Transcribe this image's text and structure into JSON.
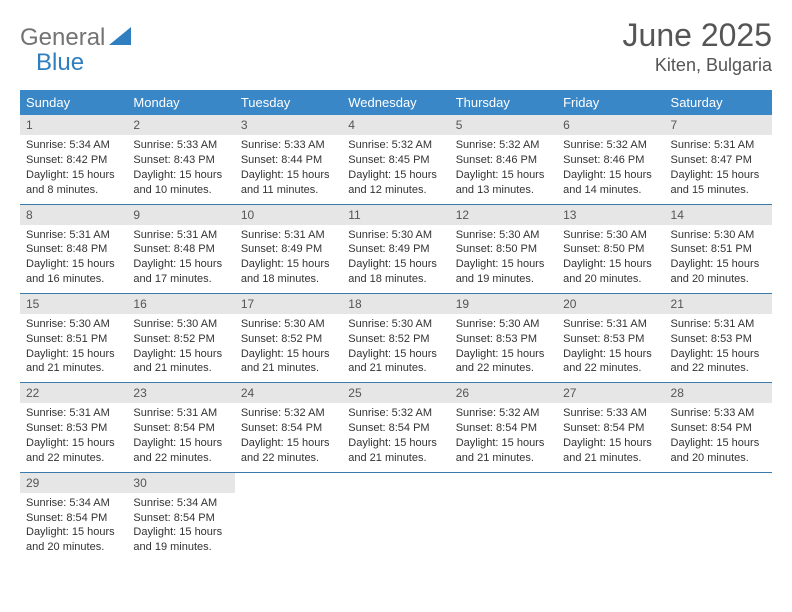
{
  "brand": {
    "part1": "General",
    "part2": "Blue"
  },
  "title": {
    "month": "June 2025",
    "location": "Kiten, Bulgaria"
  },
  "colors": {
    "header_bg": "#3a87c7",
    "header_text": "#ffffff",
    "daynum_bg": "#e6e6e6",
    "text": "#333333",
    "title_text": "#555555",
    "border": "#3a7aa8",
    "logo_gray": "#737373",
    "logo_blue": "#2f7fc0"
  },
  "day_names": [
    "Sunday",
    "Monday",
    "Tuesday",
    "Wednesday",
    "Thursday",
    "Friday",
    "Saturday"
  ],
  "weeks": [
    [
      {
        "n": "1",
        "sr": "5:34 AM",
        "ss": "8:42 PM",
        "dl": "15 hours and 8 minutes."
      },
      {
        "n": "2",
        "sr": "5:33 AM",
        "ss": "8:43 PM",
        "dl": "15 hours and 10 minutes."
      },
      {
        "n": "3",
        "sr": "5:33 AM",
        "ss": "8:44 PM",
        "dl": "15 hours and 11 minutes."
      },
      {
        "n": "4",
        "sr": "5:32 AM",
        "ss": "8:45 PM",
        "dl": "15 hours and 12 minutes."
      },
      {
        "n": "5",
        "sr": "5:32 AM",
        "ss": "8:46 PM",
        "dl": "15 hours and 13 minutes."
      },
      {
        "n": "6",
        "sr": "5:32 AM",
        "ss": "8:46 PM",
        "dl": "15 hours and 14 minutes."
      },
      {
        "n": "7",
        "sr": "5:31 AM",
        "ss": "8:47 PM",
        "dl": "15 hours and 15 minutes."
      }
    ],
    [
      {
        "n": "8",
        "sr": "5:31 AM",
        "ss": "8:48 PM",
        "dl": "15 hours and 16 minutes."
      },
      {
        "n": "9",
        "sr": "5:31 AM",
        "ss": "8:48 PM",
        "dl": "15 hours and 17 minutes."
      },
      {
        "n": "10",
        "sr": "5:31 AM",
        "ss": "8:49 PM",
        "dl": "15 hours and 18 minutes."
      },
      {
        "n": "11",
        "sr": "5:30 AM",
        "ss": "8:49 PM",
        "dl": "15 hours and 18 minutes."
      },
      {
        "n": "12",
        "sr": "5:30 AM",
        "ss": "8:50 PM",
        "dl": "15 hours and 19 minutes."
      },
      {
        "n": "13",
        "sr": "5:30 AM",
        "ss": "8:50 PM",
        "dl": "15 hours and 20 minutes."
      },
      {
        "n": "14",
        "sr": "5:30 AM",
        "ss": "8:51 PM",
        "dl": "15 hours and 20 minutes."
      }
    ],
    [
      {
        "n": "15",
        "sr": "5:30 AM",
        "ss": "8:51 PM",
        "dl": "15 hours and 21 minutes."
      },
      {
        "n": "16",
        "sr": "5:30 AM",
        "ss": "8:52 PM",
        "dl": "15 hours and 21 minutes."
      },
      {
        "n": "17",
        "sr": "5:30 AM",
        "ss": "8:52 PM",
        "dl": "15 hours and 21 minutes."
      },
      {
        "n": "18",
        "sr": "5:30 AM",
        "ss": "8:52 PM",
        "dl": "15 hours and 21 minutes."
      },
      {
        "n": "19",
        "sr": "5:30 AM",
        "ss": "8:53 PM",
        "dl": "15 hours and 22 minutes."
      },
      {
        "n": "20",
        "sr": "5:31 AM",
        "ss": "8:53 PM",
        "dl": "15 hours and 22 minutes."
      },
      {
        "n": "21",
        "sr": "5:31 AM",
        "ss": "8:53 PM",
        "dl": "15 hours and 22 minutes."
      }
    ],
    [
      {
        "n": "22",
        "sr": "5:31 AM",
        "ss": "8:53 PM",
        "dl": "15 hours and 22 minutes."
      },
      {
        "n": "23",
        "sr": "5:31 AM",
        "ss": "8:54 PM",
        "dl": "15 hours and 22 minutes."
      },
      {
        "n": "24",
        "sr": "5:32 AM",
        "ss": "8:54 PM",
        "dl": "15 hours and 22 minutes."
      },
      {
        "n": "25",
        "sr": "5:32 AM",
        "ss": "8:54 PM",
        "dl": "15 hours and 21 minutes."
      },
      {
        "n": "26",
        "sr": "5:32 AM",
        "ss": "8:54 PM",
        "dl": "15 hours and 21 minutes."
      },
      {
        "n": "27",
        "sr": "5:33 AM",
        "ss": "8:54 PM",
        "dl": "15 hours and 21 minutes."
      },
      {
        "n": "28",
        "sr": "5:33 AM",
        "ss": "8:54 PM",
        "dl": "15 hours and 20 minutes."
      }
    ],
    [
      {
        "n": "29",
        "sr": "5:34 AM",
        "ss": "8:54 PM",
        "dl": "15 hours and 20 minutes."
      },
      {
        "n": "30",
        "sr": "5:34 AM",
        "ss": "8:54 PM",
        "dl": "15 hours and 19 minutes."
      },
      null,
      null,
      null,
      null,
      null
    ]
  ],
  "labels": {
    "sunrise": "Sunrise: ",
    "sunset": "Sunset: ",
    "daylight": "Daylight: "
  }
}
